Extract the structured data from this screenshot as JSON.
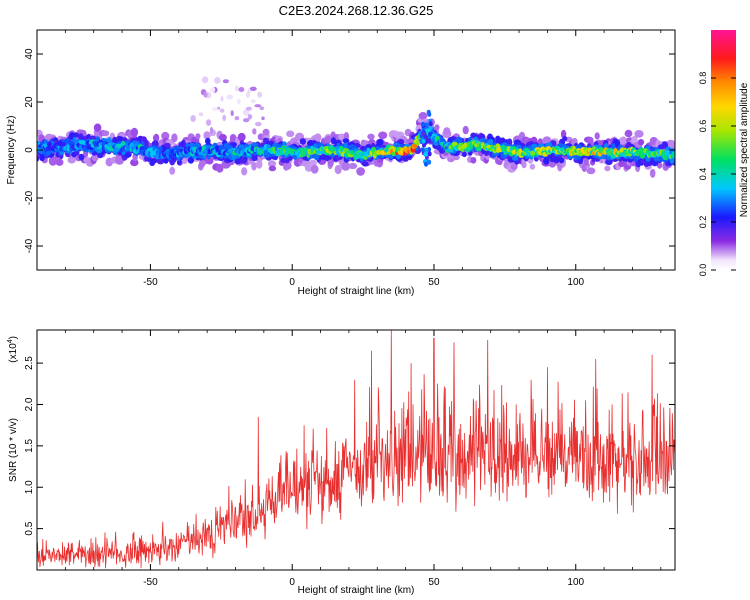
{
  "title": "C2E3.2024.268.12.36.G25",
  "chart_data": [
    {
      "type": "heatmap",
      "xlabel": "Height of straight line (km)",
      "ylabel": "Frequency (Hz)",
      "xlim": [
        -90,
        135
      ],
      "ylim": [
        -50,
        50
      ],
      "x_ticks": [
        -50,
        0,
        50,
        100
      ],
      "y_ticks": [
        -40,
        -20,
        0,
        20,
        40
      ],
      "colorbar": {
        "label": "Normalized spectral amplitude",
        "range": [
          0.0,
          1.0
        ],
        "ticks": [
          0.0,
          0.2,
          0.4,
          0.6,
          0.8
        ],
        "tick_labels": [
          "0.0",
          "0.2",
          "0.4",
          "0.6",
          "0.8"
        ],
        "colormap": "rainbow (white-purple-blue-cyan-green-yellow-orange-red-magenta)"
      },
      "description_points": [
        {
          "x": -85,
          "f": 1,
          "amp": 0.3
        },
        {
          "x": -70,
          "f": 2,
          "amp": 0.35
        },
        {
          "x": -55,
          "f": 1,
          "amp": 0.4
        },
        {
          "x": -45,
          "f": -2,
          "amp": 0.3
        },
        {
          "x": -35,
          "f": 0,
          "amp": 0.35
        },
        {
          "x": -20,
          "f": -1,
          "amp": 0.4
        },
        {
          "x": -10,
          "f": 0,
          "amp": 0.45
        },
        {
          "x": 5,
          "f": -1,
          "amp": 0.5
        },
        {
          "x": 15,
          "f": 0,
          "amp": 0.55
        },
        {
          "x": 25,
          "f": -2,
          "amp": 0.5
        },
        {
          "x": 35,
          "f": 0,
          "amp": 0.7
        },
        {
          "x": 42,
          "f": 0,
          "amp": 0.95
        },
        {
          "x": 47,
          "f": 8,
          "amp": 0.3
        },
        {
          "x": 55,
          "f": 1,
          "amp": 0.5
        },
        {
          "x": 65,
          "f": 2,
          "amp": 0.55
        },
        {
          "x": 80,
          "f": -1,
          "amp": 0.6
        },
        {
          "x": 95,
          "f": 0,
          "amp": 0.6
        },
        {
          "x": 108,
          "f": -1,
          "amp": 0.7
        },
        {
          "x": 120,
          "f": -1,
          "amp": 0.6
        },
        {
          "x": 132,
          "f": -2,
          "amp": 0.5
        }
      ]
    },
    {
      "type": "line",
      "xlabel": "Height of straight line (km)",
      "ylabel": "SNR (10 * v/v)",
      "y_multiplier": "(x10",
      "y_multiplier_exp": "4",
      "y_multiplier_close": ")",
      "xlim": [
        -90,
        135
      ],
      "ylim": [
        0,
        2.9
      ],
      "x_ticks": [
        -50,
        0,
        50,
        100
      ],
      "y_ticks": [
        0.5,
        1.0,
        1.5,
        2.0,
        2.5
      ],
      "y_tick_labels": [
        "0.5",
        "1.0",
        "1.5",
        "2.0",
        "2.5"
      ],
      "series": [
        {
          "color": "#e83030",
          "envelope": [
            {
              "x": -90,
              "mean": 0.15,
              "spread": 0.12
            },
            {
              "x": -70,
              "mean": 0.18,
              "spread": 0.14
            },
            {
              "x": -50,
              "mean": 0.22,
              "spread": 0.18
            },
            {
              "x": -40,
              "mean": 0.3,
              "spread": 0.2
            },
            {
              "x": -30,
              "mean": 0.45,
              "spread": 0.25
            },
            {
              "x": -20,
              "mean": 0.55,
              "spread": 0.3
            },
            {
              "x": -12,
              "mean": 0.65,
              "spread": 0.35
            },
            {
              "x": -5,
              "mean": 0.95,
              "spread": 0.4
            },
            {
              "x": 10,
              "mean": 1.05,
              "spread": 0.45
            },
            {
              "x": 25,
              "mean": 1.25,
              "spread": 0.5
            },
            {
              "x": 40,
              "mean": 1.35,
              "spread": 0.55
            },
            {
              "x": 60,
              "mean": 1.4,
              "spread": 0.55
            },
            {
              "x": 80,
              "mean": 1.4,
              "spread": 0.5
            },
            {
              "x": 100,
              "mean": 1.35,
              "spread": 0.5
            },
            {
              "x": 120,
              "mean": 1.3,
              "spread": 0.5
            },
            {
              "x": 135,
              "mean": 1.3,
              "spread": 0.45
            }
          ],
          "peaks": [
            {
              "x": -12,
              "y": 1.85
            },
            {
              "x": 22,
              "y": 2.3
            },
            {
              "x": 28,
              "y": 2.65
            },
            {
              "x": 35,
              "y": 2.9
            },
            {
              "x": 42,
              "y": 2.5
            },
            {
              "x": 50,
              "y": 2.8
            },
            {
              "x": 57,
              "y": 2.75
            },
            {
              "x": 69,
              "y": 2.78
            },
            {
              "x": 90,
              "y": 2.45
            },
            {
              "x": 107,
              "y": 2.55
            },
            {
              "x": 127,
              "y": 2.6
            }
          ]
        }
      ]
    }
  ]
}
